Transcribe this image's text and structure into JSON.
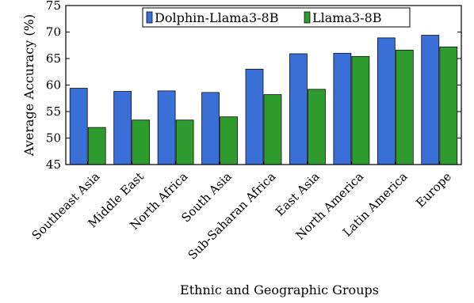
{
  "chart_data": {
    "type": "bar",
    "xlabel": "Ethnic and Geographic Groups",
    "ylabel": "Average Accuracy (%)",
    "ylim": [
      45,
      75
    ],
    "yticks": [
      45,
      50,
      55,
      60,
      65,
      70,
      75
    ],
    "grid": false,
    "legend_position": "top-center",
    "categories": [
      "Southeast Asia",
      "Middle East",
      "North Africa",
      "South Asia",
      "Sub-Saharan Africa",
      "East Asia",
      "North America",
      "Latin America",
      "Europe"
    ],
    "series": [
      {
        "name": "Dolphin-Llama3-8B",
        "color": "#3a6fd8",
        "values": [
          59.4,
          58.8,
          58.9,
          58.6,
          63.0,
          65.9,
          66.0,
          68.9,
          69.4
        ]
      },
      {
        "name": "Llama3-8B",
        "color": "#2e9b2e",
        "values": [
          52.0,
          53.4,
          53.4,
          54.0,
          58.2,
          59.2,
          65.4,
          66.6,
          67.2
        ]
      }
    ]
  }
}
